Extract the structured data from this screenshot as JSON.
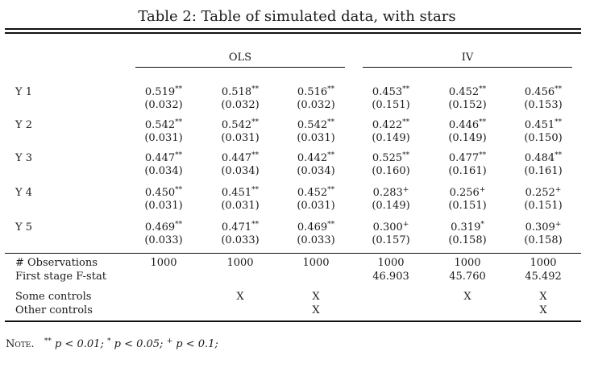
{
  "caption": "Table 2: Table of simulated data, with stars",
  "groups": [
    "OLS",
    "IV"
  ],
  "rows": [
    {
      "label": "Y 1",
      "cells": [
        {
          "est": "0.519",
          "stars": "**",
          "se": "(0.032)"
        },
        {
          "est": "0.518",
          "stars": "**",
          "se": "(0.032)"
        },
        {
          "est": "0.516",
          "stars": "**",
          "se": "(0.032)"
        },
        {
          "est": "0.453",
          "stars": "**",
          "se": "(0.151)"
        },
        {
          "est": "0.452",
          "stars": "**",
          "se": "(0.152)"
        },
        {
          "est": "0.456",
          "stars": "**",
          "se": "(0.153)"
        }
      ]
    },
    {
      "label": "Y 2",
      "cells": [
        {
          "est": "0.542",
          "stars": "**",
          "se": "(0.031)"
        },
        {
          "est": "0.542",
          "stars": "**",
          "se": "(0.031)"
        },
        {
          "est": "0.542",
          "stars": "**",
          "se": "(0.031)"
        },
        {
          "est": "0.422",
          "stars": "**",
          "se": "(0.149)"
        },
        {
          "est": "0.446",
          "stars": "**",
          "se": "(0.149)"
        },
        {
          "est": "0.451",
          "stars": "**",
          "se": "(0.150)"
        }
      ]
    },
    {
      "label": "Y 3",
      "cells": [
        {
          "est": "0.447",
          "stars": "**",
          "se": "(0.034)"
        },
        {
          "est": "0.447",
          "stars": "**",
          "se": "(0.034)"
        },
        {
          "est": "0.442",
          "stars": "**",
          "se": "(0.034)"
        },
        {
          "est": "0.525",
          "stars": "**",
          "se": "(0.160)"
        },
        {
          "est": "0.477",
          "stars": "**",
          "se": "(0.161)"
        },
        {
          "est": "0.484",
          "stars": "**",
          "se": "(0.161)"
        }
      ]
    },
    {
      "label": "Y 4",
      "cells": [
        {
          "est": "0.450",
          "stars": "**",
          "se": "(0.031)"
        },
        {
          "est": "0.451",
          "stars": "**",
          "se": "(0.031)"
        },
        {
          "est": "0.452",
          "stars": "**",
          "se": "(0.031)"
        },
        {
          "est": "0.283",
          "stars": "+",
          "se": "(0.149)"
        },
        {
          "est": "0.256",
          "stars": "+",
          "se": "(0.151)"
        },
        {
          "est": "0.252",
          "stars": "+",
          "se": "(0.151)"
        }
      ]
    },
    {
      "label": "Y 5",
      "cells": [
        {
          "est": "0.469",
          "stars": "**",
          "se": "(0.033)"
        },
        {
          "est": "0.471",
          "stars": "**",
          "se": "(0.033)"
        },
        {
          "est": "0.469",
          "stars": "**",
          "se": "(0.033)"
        },
        {
          "est": "0.300",
          "stars": "+",
          "se": "(0.157)"
        },
        {
          "est": "0.319",
          "stars": "*",
          "se": "(0.158)"
        },
        {
          "est": "0.309",
          "stars": "+",
          "se": "(0.158)"
        }
      ]
    }
  ],
  "stats": [
    {
      "label": "# Observations",
      "values": [
        "1000",
        "1000",
        "1000",
        "1000",
        "1000",
        "1000"
      ]
    },
    {
      "label": "First stage F-stat",
      "values": [
        "",
        "",
        "",
        "46.903",
        "45.760",
        "45.492"
      ]
    },
    {
      "label": "Some controls",
      "values": [
        "",
        "X",
        "X",
        "",
        "X",
        "X"
      ]
    },
    {
      "label": "Other controls",
      "values": [
        "",
        "",
        "X",
        "",
        "",
        "X"
      ]
    }
  ],
  "note": {
    "prefix": "Note.",
    "items": [
      {
        "stars": "**",
        "text": "p < 0.01;"
      },
      {
        "stars": "*",
        "text": "p < 0.05;"
      },
      {
        "stars": "+",
        "text": "p < 0.1;"
      }
    ]
  }
}
